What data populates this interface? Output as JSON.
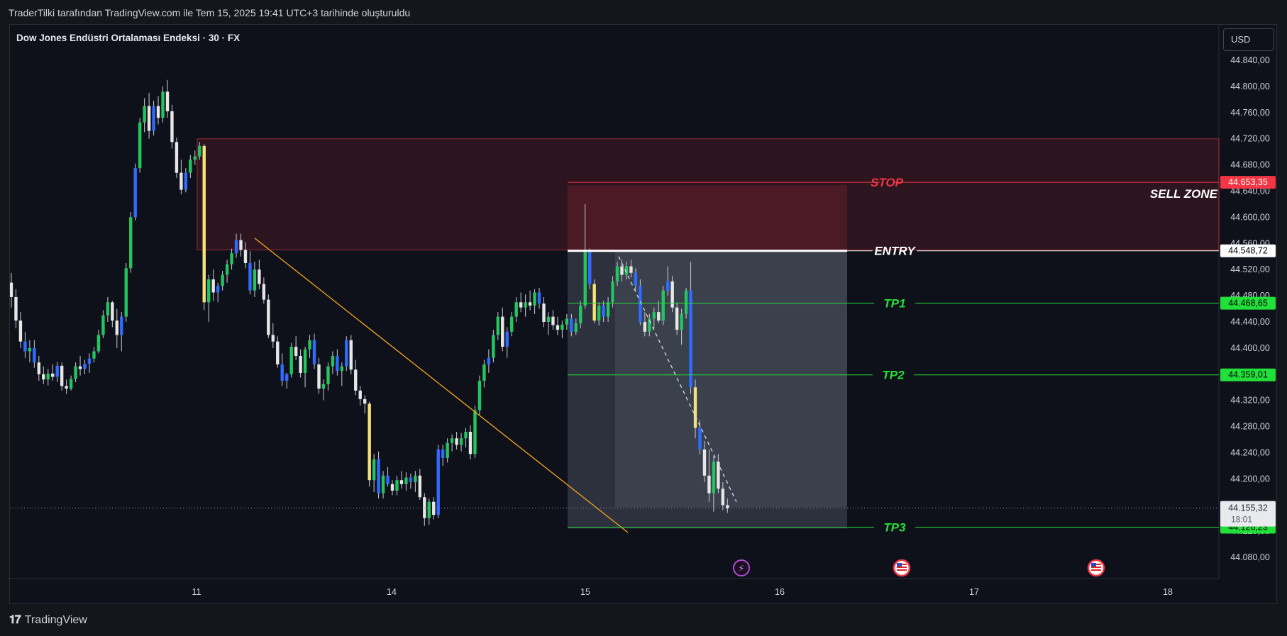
{
  "header": {
    "caption": "TraderTilki tarafından TradingView.com ile Tem 15, 2025 19:41 UTC+3 tarihinde oluşturuldu"
  },
  "symbol": {
    "title": "Dow Jones Endüstri Ortalaması Endeksi · 30 · FX"
  },
  "currency_button": "USD",
  "footer": {
    "brand": "TradingView"
  },
  "colors": {
    "bg": "#0f111a",
    "up_green": "#22c55e",
    "down_white": "#e6e6e6",
    "blue": "#2f6bff",
    "yellow": "#f5e07a",
    "stop_red": "#f23645",
    "tp_green": "#22e03a",
    "trend": "#f5a623"
  },
  "chart_data": {
    "type": "candlestick",
    "timeframe": "30",
    "xaxis_ticks": [
      "11",
      "14",
      "15",
      "16",
      "17",
      "18"
    ],
    "yaxis_ticks": [
      "44.840,00",
      "44.800,00",
      "44.760,00",
      "44.720,00",
      "44.680,00",
      "44.640,00",
      "44.600,00",
      "44.560,00",
      "44.520,00",
      "44.480,00",
      "44.440,00",
      "44.400,00",
      "44.360,00",
      "44.320,00",
      "44.280,00",
      "44.240,00",
      "44.200,00",
      "44.160,00",
      "44.120,00",
      "44.080,00"
    ],
    "ylim": [
      44063,
      44870
    ],
    "levels": [
      {
        "name": "STOP",
        "value": 44653.35,
        "label": "44.653,35",
        "color": "#f23645"
      },
      {
        "name": "ENTRY",
        "value": 44548.72,
        "label": "44.548,72",
        "color": "#ffffff"
      },
      {
        "name": "TP1",
        "value": 44468.65,
        "label": "44.468,65",
        "color": "#22e03a"
      },
      {
        "name": "TP2",
        "value": 44359.01,
        "label": "44.359,01",
        "color": "#22e03a"
      },
      {
        "name": "TP3",
        "value": 44126.23,
        "label": "44.126,23",
        "color": "#22e03a"
      }
    ],
    "zone": {
      "name": "SELL ZONE",
      "top": 44720,
      "bottom": 44550
    },
    "current_price": {
      "label": "44.155,32",
      "countdown": "18:01",
      "value": 44155.32
    },
    "candles": [
      [
        44500,
        44515,
        44462,
        44478
      ],
      [
        44478,
        44490,
        44430,
        44442
      ],
      [
        44442,
        44455,
        44400,
        44410
      ],
      [
        44410,
        44425,
        44385,
        44395
      ],
      [
        44395,
        44412,
        44378,
        44400
      ],
      [
        44400,
        44412,
        44370,
        44378
      ],
      [
        44378,
        44388,
        44350,
        44360
      ],
      [
        44360,
        44372,
        44345,
        44352
      ],
      [
        44352,
        44368,
        44343,
        44361
      ],
      [
        44361,
        44375,
        44350,
        44356
      ],
      [
        44356,
        44379,
        44348,
        44373
      ],
      [
        44373,
        44378,
        44335,
        44342
      ],
      [
        44342,
        44352,
        44330,
        44338
      ],
      [
        44338,
        44358,
        44335,
        44353
      ],
      [
        44353,
        44378,
        44348,
        44372
      ],
      [
        44372,
        44388,
        44358,
        44368
      ],
      [
        44368,
        44382,
        44360,
        44376
      ],
      [
        44376,
        44392,
        44362,
        44384
      ],
      [
        44384,
        44402,
        44378,
        44395
      ],
      [
        44395,
        44428,
        44392,
        44420
      ],
      [
        44420,
        44458,
        44415,
        44450
      ],
      [
        44450,
        44478,
        44440,
        44470
      ],
      [
        44470,
        44472,
        44432,
        44442
      ],
      [
        44442,
        44460,
        44400,
        44420
      ],
      [
        44420,
        44455,
        44395,
        44448
      ],
      [
        44448,
        44530,
        44440,
        44522
      ],
      [
        44522,
        44608,
        44515,
        44600
      ],
      [
        44600,
        44682,
        44595,
        44675
      ],
      [
        44675,
        44752,
        44668,
        44745
      ],
      [
        44745,
        44782,
        44730,
        44770
      ],
      [
        44770,
        44790,
        44720,
        44732
      ],
      [
        44732,
        44778,
        44725,
        44770
      ],
      [
        44770,
        44785,
        44742,
        44752
      ],
      [
        44752,
        44800,
        44745,
        44792
      ],
      [
        44792,
        44810,
        44752,
        44762
      ],
      [
        44762,
        44772,
        44705,
        44715
      ],
      [
        44715,
        44722,
        44660,
        44668
      ],
      [
        44668,
        44688,
        44635,
        44642
      ],
      [
        44642,
        44675,
        44638,
        44668
      ],
      [
        44668,
        44695,
        44660,
        44688
      ],
      [
        44688,
        44702,
        44680,
        44693
      ],
      [
        44693,
        44715,
        44688,
        44709
      ],
      [
        44709,
        44712,
        44458,
        44470
      ],
      [
        44470,
        44512,
        44440,
        44505
      ],
      [
        44505,
        44520,
        44472,
        44485
      ],
      [
        44485,
        44500,
        44470,
        44495
      ],
      [
        44495,
        44518,
        44488,
        44512
      ],
      [
        44512,
        44535,
        44500,
        44528
      ],
      [
        44528,
        44552,
        44520,
        44545
      ],
      [
        44545,
        44575,
        44538,
        44565
      ],
      [
        44565,
        44575,
        44540,
        44550
      ],
      [
        44550,
        44562,
        44522,
        44530
      ],
      [
        44530,
        44548,
        44482,
        44488
      ],
      [
        44488,
        44532,
        44478,
        44520
      ],
      [
        44520,
        44535,
        44490,
        44498
      ],
      [
        44498,
        44508,
        44468,
        44474
      ],
      [
        44474,
        44482,
        44415,
        44420
      ],
      [
        44420,
        44438,
        44400,
        44410
      ],
      [
        44410,
        44418,
        44370,
        44375
      ],
      [
        44375,
        44392,
        44342,
        44350
      ],
      [
        44350,
        44362,
        44338,
        44360
      ],
      [
        44360,
        44408,
        44355,
        44402
      ],
      [
        44402,
        44418,
        44382,
        44388
      ],
      [
        44388,
        44398,
        44355,
        44362
      ],
      [
        44362,
        44402,
        44340,
        44398
      ],
      [
        44398,
        44420,
        44385,
        44412
      ],
      [
        44412,
        44422,
        44368,
        44375
      ],
      [
        44375,
        44385,
        44330,
        44338
      ],
      [
        44338,
        44352,
        44320,
        44345
      ],
      [
        44345,
        44378,
        44335,
        44372
      ],
      [
        44372,
        44395,
        44360,
        44388
      ],
      [
        44388,
        44398,
        44358,
        44365
      ],
      [
        44365,
        44378,
        44342,
        44372
      ],
      [
        44372,
        44418,
        44365,
        44412
      ],
      [
        44412,
        44420,
        44360,
        44367
      ],
      [
        44367,
        44382,
        44328,
        44335
      ],
      [
        44335,
        44342,
        44312,
        44322
      ],
      [
        44322,
        44328,
        44300,
        44315
      ],
      [
        44315,
        44318,
        44188,
        44198
      ],
      [
        44198,
        44238,
        44180,
        44230
      ],
      [
        44230,
        44242,
        44170,
        44178
      ],
      [
        44178,
        44212,
        44170,
        44205
      ],
      [
        44205,
        44218,
        44188,
        44192
      ],
      [
        44192,
        44198,
        44175,
        44182
      ],
      [
        44182,
        44205,
        44175,
        44198
      ],
      [
        44198,
        44212,
        44185,
        44192
      ],
      [
        44192,
        44210,
        44182,
        44202
      ],
      [
        44202,
        44208,
        44185,
        44195
      ],
      [
        44195,
        44212,
        44180,
        44205
      ],
      [
        44205,
        44215,
        44168,
        44172
      ],
      [
        44172,
        44178,
        44128,
        44140
      ],
      [
        44140,
        44170,
        44130,
        44165
      ],
      [
        44165,
        44172,
        44138,
        44145
      ],
      [
        44145,
        44252,
        44140,
        44245
      ],
      [
        44245,
        44252,
        44220,
        44232
      ],
      [
        44232,
        44262,
        44225,
        44255
      ],
      [
        44255,
        44268,
        44242,
        44262
      ],
      [
        44262,
        44272,
        44245,
        44252
      ],
      [
        44252,
        44270,
        44242,
        44262
      ],
      [
        44262,
        44278,
        44248,
        44272
      ],
      [
        44272,
        44282,
        44230,
        44238
      ],
      [
        44238,
        44312,
        44232,
        44305
      ],
      [
        44305,
        44358,
        44298,
        44350
      ],
      [
        44350,
        44382,
        44340,
        44375
      ],
      [
        44375,
        44398,
        44362,
        44385
      ],
      [
        44385,
        44428,
        44378,
        44420
      ],
      [
        44420,
        44455,
        44412,
        44448
      ],
      [
        44448,
        44462,
        44395,
        44402
      ],
      [
        44402,
        44432,
        44385,
        44425
      ],
      [
        44425,
        44455,
        44418,
        44448
      ],
      [
        44448,
        44478,
        44440,
        44470
      ],
      [
        44470,
        44485,
        44455,
        44462
      ],
      [
        44462,
        44482,
        44448,
        44470
      ],
      [
        44470,
        44488,
        44458,
        44465
      ],
      [
        44465,
        44490,
        44452,
        44485
      ],
      [
        44485,
        44492,
        44460,
        44468
      ],
      [
        44468,
        44478,
        44432,
        44440
      ],
      [
        44440,
        44455,
        44420,
        44448
      ],
      [
        44448,
        44458,
        44428,
        44435
      ],
      [
        44435,
        44448,
        44420,
        44428
      ],
      [
        44428,
        44442,
        44415,
        44436
      ],
      [
        44436,
        44452,
        44428,
        44445
      ],
      [
        44445,
        44452,
        44418,
        44425
      ],
      [
        44425,
        44445,
        44420,
        44438
      ],
      [
        44438,
        44472,
        44430,
        44465
      ],
      [
        44465,
        44620,
        44460,
        44548
      ],
      [
        44548,
        44552,
        44490,
        44498
      ],
      [
        44498,
        44505,
        44438,
        44442
      ],
      [
        44442,
        44470,
        44435,
        44465
      ],
      [
        44465,
        44472,
        44440,
        44448
      ],
      [
        44448,
        44478,
        44440,
        44470
      ],
      [
        44470,
        44510,
        44462,
        44502
      ],
      [
        44502,
        44532,
        44495,
        44525
      ],
      [
        44525,
        44535,
        44502,
        44512
      ],
      [
        44512,
        44532,
        44505,
        44525
      ],
      [
        44525,
        44535,
        44508,
        44515
      ],
      [
        44515,
        44522,
        44488,
        44495
      ],
      [
        44495,
        44505,
        44435,
        44440
      ],
      [
        44440,
        44455,
        44418,
        44425
      ],
      [
        44425,
        44452,
        44418,
        44445
      ],
      [
        44445,
        44462,
        44430,
        44455
      ],
      [
        44455,
        44472,
        44438,
        44442
      ],
      [
        44442,
        44495,
        44435,
        44488
      ],
      [
        44488,
        44525,
        44480,
        44502
      ],
      [
        44502,
        44510,
        44455,
        44462
      ],
      [
        44462,
        44470,
        44420,
        44428
      ],
      [
        44428,
        44460,
        44405,
        44452
      ],
      [
        44452,
        44492,
        44445,
        44488
      ],
      [
        44488,
        44532,
        44330,
        44340
      ],
      [
        44340,
        44352,
        44262,
        44278
      ],
      [
        44278,
        44290,
        44238,
        44245
      ],
      [
        44245,
        44258,
        44195,
        44205
      ],
      [
        44205,
        44245,
        44165,
        44178
      ],
      [
        44178,
        44235,
        44150,
        44226
      ],
      [
        44226,
        44238,
        44178,
        44185
      ],
      [
        44185,
        44195,
        44152,
        44160
      ],
      [
        44160,
        44170,
        44148,
        44155
      ]
    ]
  }
}
